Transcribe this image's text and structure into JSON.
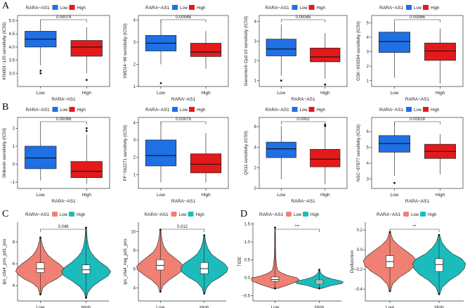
{
  "panel_labels": [
    "A",
    "B",
    "C",
    "D"
  ],
  "colors": {
    "box_low": "#1f6fe5",
    "box_high": "#e31a1c",
    "violin_low": "#f08073",
    "violin_high": "#1cbcbc"
  },
  "chart_data": [
    {
      "panel": "A",
      "type": "box",
      "legend": {
        "title": "RARA−AS1",
        "items": [
          "Low",
          "High"
        ]
      },
      "categories": [
        "Low",
        "High"
      ],
      "ylabel": "KIN001−135 sensitivity (IC50)",
      "ylim": [
        2.5,
        5.2
      ],
      "yticks": [
        "3.0",
        "3.5",
        "4.0",
        "4.5",
        "5.0"
      ],
      "pvalue": "0.00074",
      "boxes": [
        {
          "min": 3.3,
          "q1": 4.0,
          "median": 4.3,
          "q3": 4.6,
          "max": 5.05,
          "outliers": [
            3.1,
            3.0
          ]
        },
        {
          "min": 3.0,
          "q1": 3.65,
          "median": 4.0,
          "q3": 4.25,
          "max": 4.75,
          "outliers": [
            2.75
          ]
        }
      ]
    },
    {
      "panel": "A",
      "type": "box",
      "legend": {
        "title": "RARA−AS1",
        "items": [
          "Low",
          "High"
        ]
      },
      "categories": [
        "Low",
        "High"
      ],
      "ylabel": "XMD14−99 sensitivity (IC50)",
      "ylim": [
        1.0,
        4.2
      ],
      "yticks": [
        "1",
        "2",
        "3",
        "4"
      ],
      "pvalue": "0.00048",
      "boxes": [
        {
          "min": 2.0,
          "q1": 2.6,
          "median": 2.95,
          "q3": 3.3,
          "max": 4.0,
          "outliers": [
            1.15
          ]
        },
        {
          "min": 1.8,
          "q1": 2.35,
          "median": 2.55,
          "q3": 2.95,
          "max": 3.5,
          "outliers": []
        }
      ]
    },
    {
      "panel": "A",
      "type": "box",
      "legend": {
        "title": "RARA−AS1",
        "items": [
          "Low",
          "High"
        ]
      },
      "categories": [
        "Low",
        "High"
      ],
      "ylabel": "Genentech Cpd 10 sensitivity (IC50)",
      "ylim": [
        0.7,
        4.3
      ],
      "yticks": [
        "1",
        "2",
        "3",
        "4"
      ],
      "pvalue": "0.00045",
      "boxes": [
        {
          "min": 1.25,
          "q1": 2.25,
          "median": 2.6,
          "q3": 3.1,
          "max": 3.85,
          "outliers": [
            1.0
          ]
        },
        {
          "min": 1.1,
          "q1": 1.95,
          "median": 2.2,
          "q3": 2.65,
          "max": 3.4,
          "outliers": [
            0.8
          ]
        }
      ]
    },
    {
      "panel": "A",
      "type": "box",
      "legend": {
        "title": "RARA−AS1",
        "items": [
          "Low",
          "High"
        ]
      },
      "categories": [
        "Low",
        "High"
      ],
      "ylabel": "GSK−650394 sensitivity (IC50)",
      "ylim": [
        0.6,
        5.5
      ],
      "yticks": [
        "1",
        "2",
        "3",
        "4",
        "5"
      ],
      "pvalue": "0.00086",
      "boxes": [
        {
          "min": 1.2,
          "q1": 2.95,
          "median": 3.7,
          "q3": 4.35,
          "max": 5.0,
          "outliers": []
        },
        {
          "min": 0.8,
          "q1": 2.4,
          "median": 3.05,
          "q3": 3.6,
          "max": 4.6,
          "outliers": []
        }
      ]
    },
    {
      "panel": "B",
      "type": "box",
      "legend": {
        "title": "RARA−AS1",
        "items": [
          "Low",
          "High"
        ]
      },
      "categories": [
        "Low",
        "High"
      ],
      "ylabel": "Shikonin sensitivity (IC50)",
      "ylim": [
        -1.35,
        2.6
      ],
      "yticks": [
        "−1",
        "0",
        "1",
        "2"
      ],
      "pvalue": "0.00068",
      "boxes": [
        {
          "min": -0.9,
          "q1": -0.25,
          "median": 0.35,
          "q3": 1.0,
          "max": 2.3,
          "outliers": []
        },
        {
          "min": -1.1,
          "q1": -0.75,
          "median": -0.4,
          "q3": 0.15,
          "max": 1.65,
          "outliers": [
            2.0,
            1.85
          ]
        }
      ]
    },
    {
      "panel": "B",
      "type": "box",
      "legend": {
        "title": "RARA−AS1",
        "items": [
          "Low",
          "High"
        ]
      },
      "categories": [
        "Low",
        "High"
      ],
      "ylabel": "PF−562271 sensitivity (IC50)",
      "ylim": [
        0.2,
        4.3
      ],
      "yticks": [
        "1",
        "2",
        "3",
        "4"
      ],
      "pvalue": "0.00079",
      "boxes": [
        {
          "min": 0.55,
          "q1": 1.5,
          "median": 2.1,
          "q3": 3.0,
          "max": 4.05,
          "outliers": []
        },
        {
          "min": 0.55,
          "q1": 1.1,
          "median": 1.6,
          "q3": 2.2,
          "max": 3.4,
          "outliers": []
        }
      ]
    },
    {
      "panel": "B",
      "type": "box",
      "legend": {
        "title": "RARA−AS1",
        "items": [
          "Low",
          "High"
        ]
      },
      "categories": [
        "Low",
        "High"
      ],
      "ylabel": "QS11 sensitivity (IC50)",
      "ylim": [
        0.0,
        6.9
      ],
      "yticks": [
        "0",
        "2",
        "4",
        "6"
      ],
      "pvalue": "0.0002",
      "boxes": [
        {
          "min": 0.9,
          "q1": 3.0,
          "median": 3.85,
          "q3": 4.5,
          "max": 6.05,
          "outliers": []
        },
        {
          "min": 0.4,
          "q1": 2.1,
          "median": 2.85,
          "q3": 3.8,
          "max": 5.9,
          "outliers": [
            6.2,
            6.05
          ]
        }
      ]
    },
    {
      "panel": "B",
      "type": "box",
      "legend": {
        "title": "RARA−AS1",
        "items": [
          "Low",
          "High"
        ]
      },
      "categories": [
        "Low",
        "High"
      ],
      "ylabel": "NSC−87877 sensitivity (IC50)",
      "ylim": [
        2.4,
        6.9
      ],
      "yticks": [
        "3",
        "4",
        "5",
        "6"
      ],
      "pvalue": "0.00018",
      "boxes": [
        {
          "min": 3.2,
          "q1": 4.7,
          "median": 5.25,
          "q3": 5.75,
          "max": 6.55,
          "outliers": [
            2.75
          ]
        },
        {
          "min": 3.3,
          "q1": 4.3,
          "median": 4.75,
          "q3": 5.2,
          "max": 5.85,
          "outliers": []
        }
      ]
    },
    {
      "panel": "C",
      "type": "violin",
      "legend": {
        "title": "RARA−AS1",
        "items": [
          "Low",
          "High"
        ]
      },
      "categories": [
        "Low",
        "High"
      ],
      "ylabel": "ips_ctla4_pos_pd1_pos",
      "ylim": [
        2.6,
        9.8
      ],
      "yticks": [
        "4",
        "6",
        "8"
      ],
      "pvalue": "0.048",
      "groups": [
        {
          "min": 3.2,
          "q1": 5.2,
          "median": 5.55,
          "q3": 6.1,
          "max": 8.4,
          "dens": [
            [
              3.2,
              0.02
            ],
            [
              3.8,
              0.1
            ],
            [
              4.2,
              0.3
            ],
            [
              4.6,
              0.65
            ],
            [
              5.0,
              0.9
            ],
            [
              5.3,
              1.0
            ],
            [
              5.6,
              0.95
            ],
            [
              6.0,
              0.75
            ],
            [
              6.4,
              0.5
            ],
            [
              6.8,
              0.3
            ],
            [
              7.2,
              0.18
            ],
            [
              7.6,
              0.1
            ],
            [
              8.0,
              0.05
            ],
            [
              8.4,
              0.02
            ]
          ]
        },
        {
          "min": 2.9,
          "q1": 5.1,
          "median": 5.45,
          "q3": 5.9,
          "max": 9.3,
          "dens": [
            [
              2.9,
              0.02
            ],
            [
              3.4,
              0.08
            ],
            [
              3.9,
              0.25
            ],
            [
              4.4,
              0.55
            ],
            [
              4.9,
              0.9
            ],
            [
              5.3,
              1.0
            ],
            [
              5.7,
              0.85
            ],
            [
              6.1,
              0.6
            ],
            [
              6.6,
              0.35
            ],
            [
              7.1,
              0.18
            ],
            [
              7.6,
              0.1
            ],
            [
              8.2,
              0.05
            ],
            [
              8.8,
              0.03
            ],
            [
              9.3,
              0.02
            ]
          ]
        }
      ]
    },
    {
      "panel": "C",
      "type": "violin",
      "legend": {
        "title": "RARA−AS1",
        "items": [
          "Low",
          "High"
        ]
      },
      "categories": [
        "Low",
        "High"
      ],
      "ylabel": "ips_ctla4_neg_pd1_pos",
      "ylim": [
        2.6,
        11.0
      ],
      "yticks": [
        "4",
        "6",
        "8",
        "10"
      ],
      "pvalue": "0.012",
      "groups": [
        {
          "min": 3.6,
          "q1": 5.9,
          "median": 6.4,
          "q3": 7.0,
          "max": 10.2,
          "dens": [
            [
              3.6,
              0.02
            ],
            [
              4.2,
              0.1
            ],
            [
              4.8,
              0.35
            ],
            [
              5.4,
              0.7
            ],
            [
              5.9,
              0.95
            ],
            [
              6.3,
              1.0
            ],
            [
              6.8,
              0.8
            ],
            [
              7.3,
              0.55
            ],
            [
              7.8,
              0.3
            ],
            [
              8.4,
              0.15
            ],
            [
              9.0,
              0.08
            ],
            [
              9.6,
              0.04
            ],
            [
              10.2,
              0.02
            ]
          ]
        },
        {
          "min": 3.4,
          "q1": 5.5,
          "median": 6.05,
          "q3": 6.7,
          "max": 9.6,
          "dens": [
            [
              3.4,
              0.02
            ],
            [
              4.0,
              0.1
            ],
            [
              4.6,
              0.3
            ],
            [
              5.2,
              0.7
            ],
            [
              5.7,
              0.95
            ],
            [
              6.1,
              1.0
            ],
            [
              6.6,
              0.85
            ],
            [
              7.1,
              0.55
            ],
            [
              7.6,
              0.3
            ],
            [
              8.2,
              0.15
            ],
            [
              8.9,
              0.06
            ],
            [
              9.6,
              0.02
            ]
          ]
        }
      ]
    },
    {
      "panel": "D",
      "type": "violin",
      "legend": {
        "title": "RARA−AS1",
        "items": [
          "Low",
          "High"
        ]
      },
      "categories": [
        "Low",
        "High"
      ],
      "ylabel": "TIDE",
      "ylim": [
        -0.65,
        1.55
      ],
      "yticks": [
        "−0.5",
        "0.0",
        "0.5",
        "1.0",
        "1.5"
      ],
      "pvalue": "***",
      "groups": [
        {
          "min": -0.3,
          "q1": -0.1,
          "median": -0.05,
          "q3": 0.02,
          "max": 1.4,
          "dens": [
            [
              -0.3,
              0.1
            ],
            [
              -0.2,
              0.55
            ],
            [
              -0.1,
              0.95
            ],
            [
              -0.05,
              1.0
            ],
            [
              0.0,
              0.9
            ],
            [
              0.05,
              0.6
            ],
            [
              0.12,
              0.3
            ],
            [
              0.2,
              0.12
            ],
            [
              0.35,
              0.06
            ],
            [
              0.6,
              0.03
            ],
            [
              0.9,
              0.02
            ],
            [
              1.2,
              0.02
            ],
            [
              1.4,
              0.01
            ]
          ]
        },
        {
          "min": -0.3,
          "q1": -0.17,
          "median": -0.12,
          "q3": -0.07,
          "max": 0.22,
          "dens": [
            [
              -0.3,
              0.1
            ],
            [
              -0.22,
              0.5
            ],
            [
              -0.16,
              0.95
            ],
            [
              -0.12,
              1.0
            ],
            [
              -0.08,
              0.85
            ],
            [
              -0.03,
              0.5
            ],
            [
              0.03,
              0.25
            ],
            [
              0.1,
              0.1
            ],
            [
              0.16,
              0.04
            ],
            [
              0.22,
              0.01
            ]
          ]
        }
      ]
    },
    {
      "panel": "D",
      "type": "violin",
      "legend": {
        "title": "RARA−AS1",
        "items": [
          "Low",
          "High"
        ]
      },
      "categories": [
        "Low",
        "High"
      ],
      "ylabel": "Dysfunction",
      "ylim": [
        -0.52,
        0.28
      ],
      "yticks": [
        "−0.4",
        "−0.2",
        "0.0",
        "0.2"
      ],
      "pvalue": "**",
      "groups": [
        {
          "min": -0.42,
          "q1": -0.18,
          "median": -0.12,
          "q3": -0.06,
          "max": 0.18,
          "dens": [
            [
              -0.42,
              0.02
            ],
            [
              -0.35,
              0.1
            ],
            [
              -0.28,
              0.35
            ],
            [
              -0.22,
              0.7
            ],
            [
              -0.16,
              0.95
            ],
            [
              -0.11,
              1.0
            ],
            [
              -0.06,
              0.85
            ],
            [
              0.0,
              0.55
            ],
            [
              0.05,
              0.3
            ],
            [
              0.1,
              0.12
            ],
            [
              0.15,
              0.05
            ],
            [
              0.18,
              0.02
            ]
          ]
        },
        {
          "min": -0.45,
          "q1": -0.22,
          "median": -0.15,
          "q3": -0.09,
          "max": 0.15,
          "dens": [
            [
              -0.45,
              0.02
            ],
            [
              -0.38,
              0.12
            ],
            [
              -0.31,
              0.4
            ],
            [
              -0.25,
              0.75
            ],
            [
              -0.19,
              0.95
            ],
            [
              -0.14,
              1.0
            ],
            [
              -0.09,
              0.85
            ],
            [
              -0.04,
              0.5
            ],
            [
              0.02,
              0.25
            ],
            [
              0.08,
              0.1
            ],
            [
              0.15,
              0.02
            ]
          ]
        }
      ]
    }
  ]
}
